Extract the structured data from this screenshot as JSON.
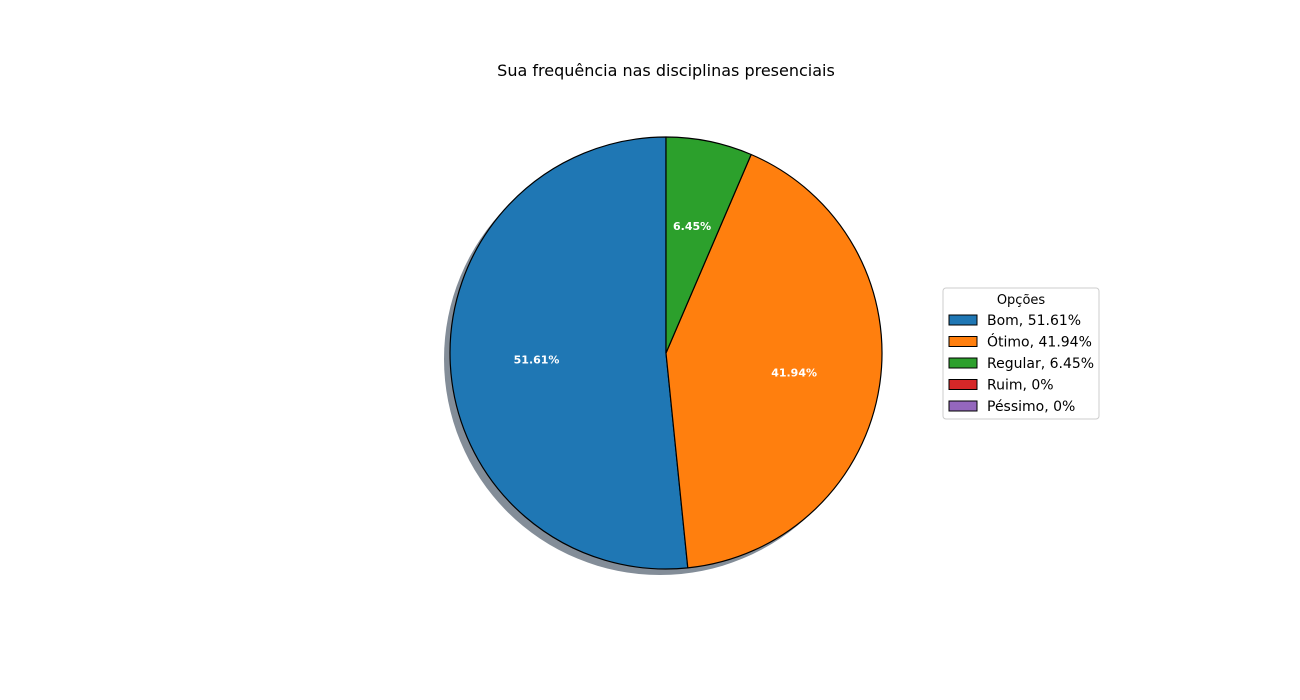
{
  "chart_data": {
    "type": "pie",
    "title": "Sua frequência nas disciplinas presenciais",
    "categories": [
      "Bom",
      "Ótimo",
      "Regular",
      "Ruim",
      "Péssimo"
    ],
    "values": [
      51.61,
      41.94,
      6.45,
      0,
      0
    ],
    "slice_labels": [
      "51.61%",
      "41.94%",
      "6.45%",
      "",
      ""
    ],
    "colors": [
      "#1f77b4",
      "#ff7f0e",
      "#2ca02c",
      "#d62728",
      "#9467bd"
    ],
    "legend": {
      "title": "Opções",
      "placement": "center-right",
      "entries": [
        "Bom, 51.61%",
        "Ótimo, 41.94%",
        "Regular, 6.45%",
        "Ruim, 0%",
        "Péssimo, 0%"
      ]
    },
    "start_angle_deg": 90,
    "direction": "counterclockwise",
    "shadow": true,
    "slice_edge_color": "#000000"
  }
}
